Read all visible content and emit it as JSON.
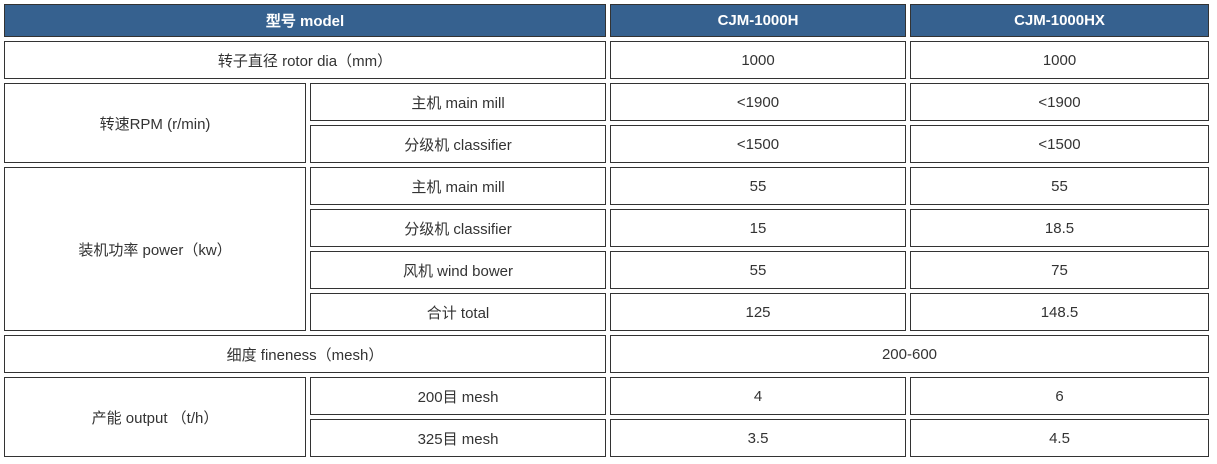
{
  "colors": {
    "header-bg": "#36618F",
    "header-text": "#FFFFFF",
    "border": "#333333",
    "text": "#333333",
    "page-bg": "#FFFFFF"
  },
  "table": {
    "header": {
      "model_label": "型号 model",
      "col1": "CJM-1000H",
      "col2": "CJM-1000HX"
    },
    "rotor": {
      "label": "转子直径 rotor dia（mm）",
      "v1": "1000",
      "v2": "1000"
    },
    "rpm": {
      "group_label": "转速RPM  (r/min)",
      "main_mill": {
        "label": "主机 main mill",
        "v1": "<1900",
        "v2": "<1900"
      },
      "classifier": {
        "label": "分级机  classifier",
        "v1": "<1500",
        "v2": "<1500"
      }
    },
    "power": {
      "group_label": "装机功率 power（kw）",
      "main_mill": {
        "label": "主机 main mill",
        "v1": "55",
        "v2": "55"
      },
      "classifier": {
        "label": "分级机 classifier",
        "v1": "15",
        "v2": "18.5"
      },
      "wind_bower": {
        "label": "风机  wind bower",
        "v1": "55",
        "v2": "75"
      },
      "total": {
        "label": "合计  total",
        "v1": "125",
        "v2": "148.5"
      }
    },
    "fineness": {
      "label": "细度 fineness（mesh）",
      "value": "200-600"
    },
    "output": {
      "group_label": "产能 output （t/h）",
      "mesh200": {
        "label": "200目 mesh",
        "v1": "4",
        "v2": "6"
      },
      "mesh325": {
        "label": "325目 mesh",
        "v1": "3.5",
        "v2": "4.5"
      }
    }
  }
}
